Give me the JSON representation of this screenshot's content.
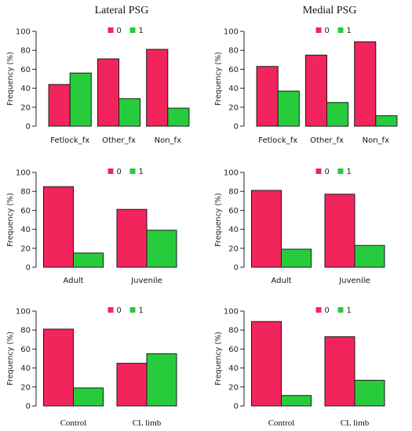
{
  "column_titles": [
    "Lateral PSG",
    "Medial PSG"
  ],
  "colors": {
    "series_0": "#f2245c",
    "series_1": "#27cc3d",
    "axis": "#222222",
    "bar_stroke": "#1a1a1a"
  },
  "chart_data": [
    {
      "type": "bar",
      "panel": "lateral-fracture",
      "categories": [
        "Fetlock_fx",
        "Other_fx",
        "Non_fx"
      ],
      "series": [
        {
          "name": "0",
          "values": [
            44,
            71,
            81
          ]
        },
        {
          "name": "1",
          "values": [
            56,
            29,
            19
          ]
        }
      ],
      "title": "Lateral PSG",
      "xlabel": "",
      "ylabel": "Frequency (%)",
      "ylim": [
        0,
        100
      ],
      "yticks": [
        0,
        20,
        40,
        60,
        80,
        100
      ],
      "legend": "top-center",
      "grid": false
    },
    {
      "type": "bar",
      "panel": "medial-fracture",
      "categories": [
        "Fetlock_fx",
        "Other_fx",
        "Non_fx"
      ],
      "series": [
        {
          "name": "0",
          "values": [
            63,
            75,
            89
          ]
        },
        {
          "name": "1",
          "values": [
            37,
            25,
            11
          ]
        }
      ],
      "title": "Medial PSG",
      "xlabel": "",
      "ylabel": "Frequency (%)",
      "ylim": [
        0,
        100
      ],
      "yticks": [
        0,
        20,
        40,
        60,
        80,
        100
      ],
      "legend": "top-center",
      "grid": false
    },
    {
      "type": "bar",
      "panel": "lateral-age",
      "categories": [
        "Adult",
        "Juvenile"
      ],
      "series": [
        {
          "name": "0",
          "values": [
            85,
            61
          ]
        },
        {
          "name": "1",
          "values": [
            15,
            39
          ]
        }
      ],
      "xlabel": "",
      "ylabel": "Frequency (%)",
      "ylim": [
        0,
        100
      ],
      "yticks": [
        0,
        20,
        40,
        60,
        80,
        100
      ],
      "legend": "top-center",
      "grid": false
    },
    {
      "type": "bar",
      "panel": "medial-age",
      "categories": [
        "Adult",
        "Juvenile"
      ],
      "series": [
        {
          "name": "0",
          "values": [
            81,
            77
          ]
        },
        {
          "name": "1",
          "values": [
            19,
            23
          ]
        }
      ],
      "xlabel": "",
      "ylabel": "Frequency (%)",
      "ylim": [
        0,
        100
      ],
      "yticks": [
        0,
        20,
        40,
        60,
        80,
        100
      ],
      "legend": "top-center",
      "grid": false
    },
    {
      "type": "bar",
      "panel": "lateral-limb",
      "categories": [
        "Control",
        "CL limb"
      ],
      "series": [
        {
          "name": "0",
          "values": [
            81,
            45
          ]
        },
        {
          "name": "1",
          "values": [
            19,
            55
          ]
        }
      ],
      "xlabel": "",
      "ylabel": "Frequency (%)",
      "ylim": [
        0,
        100
      ],
      "yticks": [
        0,
        20,
        40,
        60,
        80,
        100
      ],
      "legend": "top-center",
      "grid": false
    },
    {
      "type": "bar",
      "panel": "medial-limb",
      "categories": [
        "Control",
        "CL limb"
      ],
      "series": [
        {
          "name": "0",
          "values": [
            89,
            73
          ]
        },
        {
          "name": "1",
          "values": [
            11,
            27
          ]
        }
      ],
      "xlabel": "",
      "ylabel": "Frequency (%)",
      "ylim": [
        0,
        100
      ],
      "yticks": [
        0,
        20,
        40,
        60,
        80,
        100
      ],
      "legend": "top-center",
      "grid": false
    }
  ]
}
